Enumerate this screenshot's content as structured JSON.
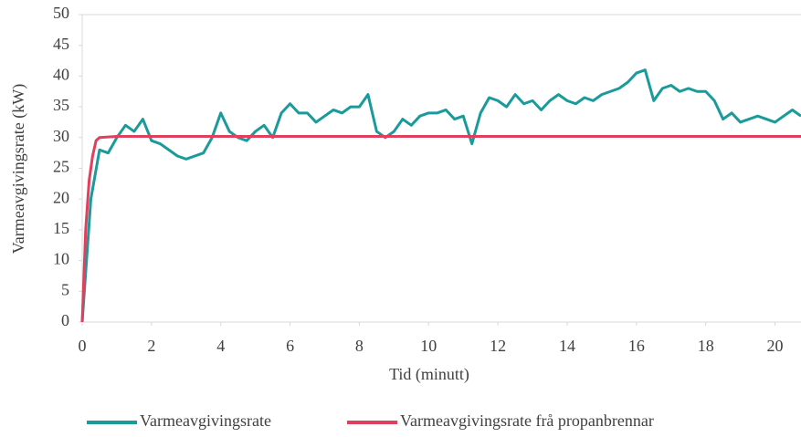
{
  "chart_data": {
    "type": "line",
    "xlabel": "Tid (minutt)",
    "ylabel": "Varmeavgivingsrate (kW)",
    "xlim": [
      0,
      20.75
    ],
    "xticks": [
      0,
      2,
      4,
      6,
      8,
      10,
      12,
      14,
      16,
      18,
      20
    ],
    "ylim": [
      0,
      50
    ],
    "yticks": [
      0,
      5,
      10,
      15,
      20,
      25,
      30,
      35,
      40,
      45,
      50
    ],
    "series": [
      {
        "name": "Varmeavgivingsrate",
        "color": "#1a9a9a",
        "x": [
          0,
          0.25,
          0.5,
          0.75,
          1,
          1.25,
          1.5,
          1.75,
          2,
          2.25,
          2.5,
          2.75,
          3,
          3.25,
          3.5,
          3.75,
          4,
          4.25,
          4.5,
          4.75,
          5,
          5.25,
          5.5,
          5.75,
          6,
          6.25,
          6.5,
          6.75,
          7,
          7.25,
          7.5,
          7.75,
          8,
          8.25,
          8.5,
          8.75,
          9,
          9.25,
          9.5,
          9.75,
          10,
          10.25,
          10.5,
          10.75,
          11,
          11.25,
          11.5,
          11.75,
          12,
          12.25,
          12.5,
          12.75,
          13,
          13.25,
          13.5,
          13.75,
          14,
          14.25,
          14.5,
          14.75,
          15,
          15.25,
          15.5,
          15.75,
          16,
          16.25,
          16.5,
          16.75,
          17,
          17.25,
          17.5,
          17.75,
          18,
          18.25,
          18.5,
          18.75,
          19,
          19.25,
          19.5,
          19.75,
          20,
          20.25,
          20.5,
          20.75
        ],
        "values": [
          0,
          20,
          28,
          27.5,
          30,
          32,
          31,
          33,
          29.5,
          29,
          28,
          27,
          26.5,
          27,
          27.5,
          30,
          34,
          31,
          30,
          29.5,
          31,
          32,
          30,
          34,
          35.5,
          34,
          34,
          32.5,
          33.5,
          34.5,
          34,
          35,
          35,
          37,
          31,
          30,
          31,
          33,
          32,
          33.5,
          34,
          34,
          34.5,
          33,
          33.5,
          29,
          34,
          36.5,
          36,
          35,
          37,
          35.5,
          36,
          34.5,
          36,
          37,
          36,
          35.5,
          36.5,
          36,
          37,
          37.5,
          38,
          39,
          40.5,
          41,
          36,
          38,
          38.5,
          37.5,
          38,
          37.5,
          37.5,
          36,
          33,
          34,
          32.5,
          33,
          33.5,
          33,
          32.5,
          33.5,
          34.5,
          33.5
        ]
      },
      {
        "name": "Varmeavgivingsrate frå propanbrennar",
        "color": "#e0405e",
        "x": [
          0,
          0.1,
          0.2,
          0.3,
          0.4,
          0.5,
          1,
          5,
          10,
          15,
          20.75
        ],
        "values": [
          0,
          15,
          23,
          27,
          29.5,
          30,
          30.2,
          30.2,
          30.2,
          30.2,
          30.2
        ]
      }
    ]
  }
}
